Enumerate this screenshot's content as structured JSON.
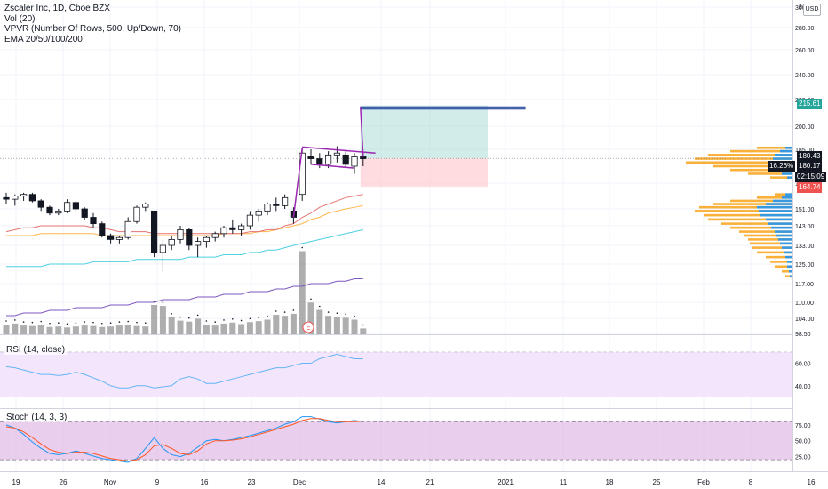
{
  "legend": {
    "title": "Zscaler Inc, 1D, Cboe BZX",
    "vol": "Vol (20)",
    "vpvr": "VPVR (Number Of Rows, 500, Up/Down, 70)",
    "ema": "EMA 20/50/100/200"
  },
  "currency_button": "USD",
  "price_axis": {
    "ticks": [
      "300.00",
      "280.00",
      "260.00",
      "240.00",
      "220.00",
      "200.00",
      "185.00",
      "167.00",
      "151.00",
      "143.00",
      "133.00",
      "125.00",
      "117.00",
      "110.00",
      "104.00",
      "98.50"
    ],
    "top_cut_label": "3"
  },
  "price_tags": {
    "target": "215.61",
    "last": "180.43",
    "change_pct": "16.26%",
    "crosshair": "180.17",
    "countdown": "02:15:09",
    "stop": "164.74"
  },
  "rsi": {
    "label": "RSI (14, close)",
    "ticks": [
      "60.00",
      "40.00"
    ]
  },
  "stoch": {
    "label": "Stoch (14, 3, 3)",
    "ticks": [
      "75.00",
      "50.00",
      "25.00"
    ]
  },
  "time_axis": {
    "labels": [
      "19",
      "26",
      "Nov",
      "9",
      "16",
      "23",
      "Dec",
      "14",
      "21",
      "2021",
      "11",
      "18",
      "25",
      "Feb",
      "8"
    ],
    "right_label": "16"
  },
  "earnings_marker": "E",
  "colors": {
    "up": "#ffffff",
    "down": "#131722",
    "volume": "#9a9a9a",
    "ema20": "#e57373",
    "ema50": "#ffb74d",
    "ema100": "#4dd0e1",
    "ema200": "#7e57c2",
    "target_zone": "#b2dfdb",
    "stop_zone": "#ffcdd2",
    "pattern": "#9c27b0",
    "rsi_line": "#64b5f6",
    "rsi_band": "#f3e5fc",
    "stoch_k": "#2196f3",
    "stoch_d": "#ff5722",
    "stoch_band": "#e1bee7",
    "vpvr_up": "#f9a825",
    "vpvr_down": "#2196f3",
    "target_tag": "#26a69a",
    "stop_tag": "#ef5350"
  },
  "chart_data": {
    "type": "candlestick",
    "candles": [
      {
        "o": 158,
        "h": 161,
        "l": 154,
        "c": 157
      },
      {
        "o": 157,
        "h": 160,
        "l": 153,
        "c": 159
      },
      {
        "o": 159,
        "h": 161,
        "l": 156,
        "c": 160
      },
      {
        "o": 160,
        "h": 161,
        "l": 155,
        "c": 156
      },
      {
        "o": 156,
        "h": 157,
        "l": 150,
        "c": 152
      },
      {
        "o": 152,
        "h": 153,
        "l": 148,
        "c": 149
      },
      {
        "o": 149,
        "h": 151,
        "l": 148,
        "c": 150
      },
      {
        "o": 150,
        "h": 157,
        "l": 149,
        "c": 155
      },
      {
        "o": 155,
        "h": 156,
        "l": 150,
        "c": 151
      },
      {
        "o": 151,
        "h": 152,
        "l": 146,
        "c": 147
      },
      {
        "o": 147,
        "h": 149,
        "l": 142,
        "c": 144
      },
      {
        "o": 144,
        "h": 145,
        "l": 137,
        "c": 138
      },
      {
        "o": 138,
        "h": 139,
        "l": 134,
        "c": 136
      },
      {
        "o": 136,
        "h": 138,
        "l": 134,
        "c": 137
      },
      {
        "o": 137,
        "h": 147,
        "l": 136,
        "c": 145
      },
      {
        "o": 145,
        "h": 153,
        "l": 144,
        "c": 152
      },
      {
        "o": 152,
        "h": 155,
        "l": 150,
        "c": 154
      },
      {
        "o": 150,
        "h": 150,
        "l": 128,
        "c": 130
      },
      {
        "o": 130,
        "h": 136,
        "l": 122,
        "c": 133
      },
      {
        "o": 133,
        "h": 138,
        "l": 131,
        "c": 136
      },
      {
        "o": 136,
        "h": 143,
        "l": 134,
        "c": 141
      },
      {
        "o": 141,
        "h": 142,
        "l": 131,
        "c": 133
      },
      {
        "o": 133,
        "h": 137,
        "l": 128,
        "c": 135
      },
      {
        "o": 135,
        "h": 138,
        "l": 132,
        "c": 137
      },
      {
        "o": 137,
        "h": 140,
        "l": 135,
        "c": 139
      },
      {
        "o": 139,
        "h": 143,
        "l": 137,
        "c": 142
      },
      {
        "o": 142,
        "h": 146,
        "l": 139,
        "c": 141
      },
      {
        "o": 141,
        "h": 144,
        "l": 138,
        "c": 143
      },
      {
        "o": 143,
        "h": 150,
        "l": 141,
        "c": 148
      },
      {
        "o": 148,
        "h": 151,
        "l": 145,
        "c": 150
      },
      {
        "o": 150,
        "h": 155,
        "l": 148,
        "c": 154
      },
      {
        "o": 154,
        "h": 158,
        "l": 150,
        "c": 153
      },
      {
        "o": 153,
        "h": 160,
        "l": 151,
        "c": 158
      },
      {
        "o": 150,
        "h": 152,
        "l": 144,
        "c": 147
      },
      {
        "o": 160,
        "h": 186,
        "l": 156,
        "c": 183
      },
      {
        "o": 181,
        "h": 185,
        "l": 177,
        "c": 180
      },
      {
        "o": 180,
        "h": 183,
        "l": 175,
        "c": 177
      },
      {
        "o": 177,
        "h": 184,
        "l": 175,
        "c": 182
      },
      {
        "o": 182,
        "h": 187,
        "l": 178,
        "c": 183
      },
      {
        "o": 182,
        "h": 184,
        "l": 175,
        "c": 177
      },
      {
        "o": 176,
        "h": 183,
        "l": 172,
        "c": 181
      },
      {
        "o": 181,
        "h": 183,
        "l": 176,
        "c": 180
      }
    ],
    "volume": [
      20,
      22,
      18,
      17,
      19,
      15,
      16,
      14,
      16,
      18,
      17,
      15,
      16,
      18,
      19,
      17,
      16,
      60,
      58,
      35,
      28,
      26,
      32,
      20,
      18,
      22,
      24,
      21,
      25,
      27,
      30,
      40,
      38,
      42,
      170,
      65,
      50,
      38,
      36,
      34,
      30,
      12
    ],
    "ema20": [
      140,
      141,
      142,
      142,
      143,
      143,
      143,
      143,
      143,
      143,
      142,
      142,
      141,
      140,
      140,
      140,
      140,
      139,
      139,
      139,
      139,
      139,
      139,
      139,
      139,
      139,
      139,
      139,
      140,
      140,
      141,
      141,
      143,
      144,
      147,
      149,
      152,
      154,
      156,
      158,
      159,
      160
    ],
    "ema50": [
      138,
      138,
      138,
      138,
      139,
      139,
      139,
      139,
      139,
      139,
      139,
      138,
      138,
      138,
      138,
      138,
      138,
      138,
      138,
      138,
      138,
      138,
      138,
      138,
      138,
      139,
      139,
      139,
      139,
      140,
      140,
      141,
      142,
      143,
      144,
      146,
      147,
      149,
      150,
      151,
      152,
      153
    ],
    "ema100": [
      124,
      124,
      124,
      124,
      124,
      125,
      125,
      125,
      125,
      125,
      126,
      126,
      126,
      126,
      126,
      127,
      127,
      127,
      127,
      127,
      127,
      128,
      128,
      128,
      128,
      129,
      129,
      129,
      130,
      130,
      131,
      131,
      132,
      133,
      134,
      135,
      136,
      137,
      138,
      139,
      140,
      141
    ],
    "ema200": [
      105,
      105,
      106,
      106,
      106,
      107,
      107,
      107,
      108,
      108,
      108,
      108,
      109,
      109,
      109,
      110,
      110,
      110,
      111,
      111,
      111,
      111,
      112,
      112,
      112,
      113,
      113,
      113,
      114,
      114,
      114,
      115,
      115,
      116,
      116,
      117,
      117,
      117,
      118,
      118,
      119,
      119
    ],
    "rsi": [
      57,
      56,
      54,
      52,
      50,
      50,
      49,
      50,
      52,
      50,
      47,
      44,
      40,
      38,
      38,
      40,
      40,
      38,
      39,
      40,
      46,
      48,
      46,
      42,
      42,
      44,
      46,
      48,
      50,
      52,
      54,
      56,
      56,
      58,
      60,
      60,
      64,
      66,
      68,
      66,
      64,
      64
    ],
    "stoch_k": [
      75,
      70,
      60,
      48,
      38,
      30,
      28,
      30,
      34,
      30,
      26,
      22,
      20,
      18,
      16,
      22,
      38,
      55,
      38,
      28,
      25,
      30,
      40,
      50,
      52,
      50,
      52,
      55,
      58,
      62,
      66,
      70,
      76,
      80,
      88,
      88,
      84,
      80,
      78,
      80,
      82,
      80
    ],
    "stoch_d": [
      72,
      70,
      64,
      55,
      45,
      36,
      32,
      30,
      32,
      32,
      30,
      26,
      22,
      20,
      18,
      20,
      28,
      42,
      44,
      38,
      30,
      28,
      34,
      45,
      50,
      50,
      51,
      53,
      56,
      60,
      64,
      68,
      72,
      76,
      82,
      85,
      85,
      82,
      80,
      80,
      80,
      81
    ],
    "position": {
      "entry": 180.17,
      "target": 215.61,
      "stop": 164.74
    },
    "box": {
      "top": 214.5,
      "bottom": 212.8
    },
    "channel": {
      "upper": [
        186.5,
        183
      ],
      "lower": [
        177,
        175
      ]
    }
  }
}
